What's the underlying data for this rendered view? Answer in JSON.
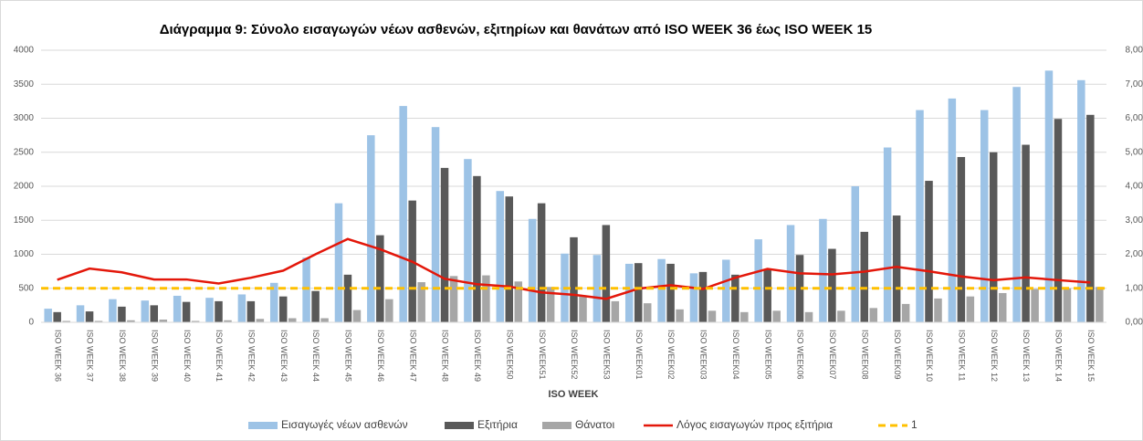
{
  "chart_data": {
    "type": "bar",
    "title": "Διάγραμμα 9: Σύνολο εισαγωγών νέων ασθενών, εξιτηρίων και θανάτων από ISO WEEK 36 έως ISO WEEK 15",
    "x_label": "ISO WEEK",
    "categories": [
      "ISO WEEK 36",
      "ISO WEEK 37",
      "ISO WEEK 38",
      "ISO WEEK 39",
      "ISO WEEK 40",
      "ISO WEEK 41",
      "ISO WEEK 42",
      "ISO WEEK 43",
      "ISO WEEK 44",
      "ISO WEEK 45",
      "ISO WEEK 46",
      "ISO WEEK 47",
      "ISO WEEK 48",
      "ISO WEEK 49",
      "ISO WEEK50",
      "ISO WEEK51",
      "ISO WEEK52",
      "ISO WEEK53",
      "ISO WEEK01",
      "ISO WEEK02",
      "ISO WEEK03",
      "ISO WEEK04",
      "ISO WEEK05",
      "ISO WEEK06",
      "ISO WEEK07",
      "ISO WEEK08",
      "ISO WEEK09",
      "ISO WEEK 10",
      "ISO WEEK 11",
      "ISO WEEK 12",
      "ISO WEEK 13",
      "ISO WEEK 14",
      "ISO WEEK 15"
    ],
    "series": [
      {
        "name": "Εισαγωγές νέων ασθενών",
        "type": "bar",
        "color": "#9dc3e6",
        "values": [
          200,
          250,
          340,
          320,
          390,
          360,
          410,
          580,
          950,
          1750,
          2750,
          3180,
          2870,
          2400,
          1930,
          1520,
          1010,
          990,
          860,
          930,
          720,
          920,
          1220,
          1430,
          1520,
          2000,
          2570,
          3120,
          3290,
          3120,
          3460,
          3700,
          3560
        ]
      },
      {
        "name": "Εξιτήρια",
        "type": "bar",
        "color": "#595959",
        "values": [
          150,
          160,
          230,
          250,
          300,
          310,
          310,
          380,
          460,
          700,
          1280,
          1790,
          2270,
          2150,
          1850,
          1750,
          1250,
          1430,
          870,
          860,
          740,
          700,
          780,
          990,
          1080,
          1330,
          1570,
          2080,
          2430,
          2500,
          2610,
          2990,
          3050
        ]
      },
      {
        "name": "Θάνατοι",
        "type": "bar",
        "color": "#a6a6a6",
        "values": [
          20,
          20,
          30,
          40,
          20,
          30,
          50,
          60,
          60,
          180,
          340,
          590,
          680,
          690,
          600,
          520,
          380,
          310,
          280,
          190,
          170,
          150,
          170,
          150,
          170,
          210,
          270,
          350,
          380,
          430,
          490,
          500,
          520
        ]
      },
      {
        "name": "Λόγος εισαγωγών προς εξιτήρια",
        "type": "line",
        "axis": "y2",
        "color": "#e3170a",
        "values": [
          1.25,
          1.58,
          1.47,
          1.26,
          1.26,
          1.14,
          1.31,
          1.52,
          2.0,
          2.45,
          2.15,
          1.78,
          1.28,
          1.12,
          1.05,
          0.88,
          0.81,
          0.69,
          0.99,
          1.09,
          0.98,
          1.31,
          1.57,
          1.44,
          1.41,
          1.49,
          1.63,
          1.5,
          1.35,
          1.24,
          1.32,
          1.24,
          1.17
        ]
      },
      {
        "name": "1",
        "type": "line",
        "axis": "y2",
        "dashed": true,
        "color": "#ffc000",
        "values": [
          1,
          1,
          1,
          1,
          1,
          1,
          1,
          1,
          1,
          1,
          1,
          1,
          1,
          1,
          1,
          1,
          1,
          1,
          1,
          1,
          1,
          1,
          1,
          1,
          1,
          1,
          1,
          1,
          1,
          1,
          1,
          1,
          1
        ]
      }
    ],
    "ylim": [
      0,
      4000
    ],
    "yticks": [
      0,
      500,
      1000,
      1500,
      2000,
      2500,
      3000,
      3500,
      4000
    ],
    "y2lim": [
      0,
      8
    ],
    "y2ticks": [
      {
        "value": 0,
        "label": "0,00"
      },
      {
        "value": 1,
        "label": "1,00"
      },
      {
        "value": 2,
        "label": "2,00"
      },
      {
        "value": 3,
        "label": "3,00"
      },
      {
        "value": 4,
        "label": "4,00"
      },
      {
        "value": 5,
        "label": "5,00"
      },
      {
        "value": 6,
        "label": "6,00"
      },
      {
        "value": 7,
        "label": "7,00"
      },
      {
        "value": 8,
        "label": "8,00"
      }
    ],
    "grid": true
  }
}
